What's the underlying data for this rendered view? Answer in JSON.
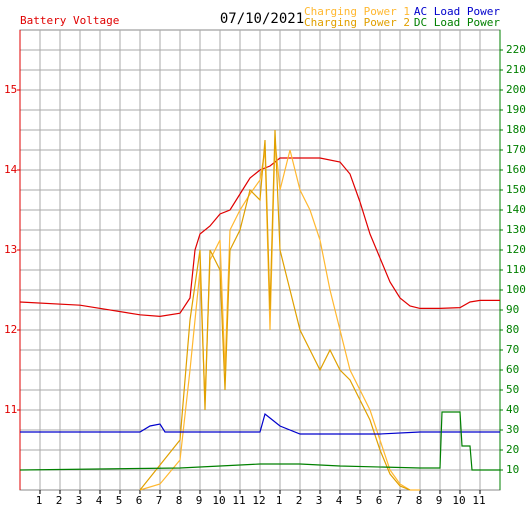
{
  "chart_data": {
    "type": "line",
    "title": "07/10/2021",
    "xlim": [
      0,
      24
    ],
    "xticks": [
      1,
      2,
      3,
      4,
      5,
      6,
      7,
      8,
      9,
      10,
      11,
      12,
      {
        "value": 13,
        "label": "1"
      },
      {
        "value": 14,
        "label": "2"
      },
      {
        "value": 15,
        "label": "3"
      },
      {
        "value": 16,
        "label": "4"
      },
      {
        "value": 17,
        "label": "5"
      },
      {
        "value": 18,
        "label": "6"
      },
      {
        "value": 19,
        "label": "7"
      },
      {
        "value": 20,
        "label": "8"
      },
      {
        "value": 21,
        "label": "9"
      },
      {
        "value": 22,
        "label": "10"
      },
      {
        "value": 23,
        "label": "11"
      }
    ],
    "ylim": [
      10,
      15.75
    ],
    "yticks": [
      11,
      12,
      13,
      14,
      15
    ],
    "y2lim": [
      0,
      230
    ],
    "y2ticks": [
      10,
      20,
      30,
      40,
      50,
      60,
      70,
      80,
      90,
      100,
      110,
      120,
      130,
      140,
      150,
      160,
      170,
      180,
      190,
      200,
      210,
      220
    ],
    "grid": true,
    "series": [
      {
        "name": "Battery Voltage",
        "color": "#e00000",
        "axis": "y",
        "x": [
          0,
          3,
          6,
          7,
          8,
          8.5,
          8.75,
          9,
          9.5,
          10,
          10.5,
          11,
          11.5,
          12,
          12.5,
          12.75,
          13,
          14,
          15,
          16,
          16.5,
          17,
          17.5,
          18,
          18.5,
          19,
          19.5,
          20,
          21,
          22,
          22.5,
          23,
          24
        ],
        "values": [
          12.35,
          12.31,
          12.19,
          12.17,
          12.21,
          12.4,
          13.0,
          13.2,
          13.3,
          13.45,
          13.5,
          13.7,
          13.9,
          14.0,
          14.05,
          14.1,
          14.15,
          14.15,
          14.15,
          14.1,
          13.95,
          13.6,
          13.2,
          12.9,
          12.6,
          12.4,
          12.3,
          12.27,
          12.27,
          12.28,
          12.35,
          12.37,
          12.37
        ]
      },
      {
        "name": "Charging Power 1",
        "color": "#ffb830",
        "axis": "y2",
        "x": [
          6,
          7,
          8,
          8.5,
          9,
          9.25,
          9.5,
          10,
          10.25,
          10.5,
          11,
          11.5,
          12,
          12.25,
          12.5,
          12.75,
          13,
          13.5,
          14,
          14.5,
          15,
          15.5,
          16,
          16.5,
          17,
          17.5,
          18,
          18.5,
          19,
          19.5,
          20
        ],
        "values": [
          0,
          3,
          15,
          60,
          110,
          45,
          115,
          125,
          60,
          130,
          140,
          148,
          155,
          170,
          80,
          175,
          150,
          170,
          150,
          140,
          125,
          100,
          80,
          60,
          50,
          40,
          25,
          10,
          3,
          0,
          0
        ]
      },
      {
        "name": "Charging Power 2",
        "color": "#e0a000",
        "axis": "y2",
        "x": [
          6,
          8,
          8.5,
          9,
          9.25,
          9.5,
          10,
          10.25,
          10.5,
          11,
          11.5,
          12,
          12.25,
          12.5,
          12.75,
          13,
          13.5,
          14,
          14.5,
          15,
          15.5,
          16,
          16.5,
          17,
          17.5,
          18,
          18.5,
          19,
          19.5
        ],
        "values": [
          0,
          25,
          85,
          120,
          40,
          120,
          110,
          50,
          120,
          130,
          150,
          145,
          175,
          90,
          180,
          120,
          100,
          80,
          70,
          60,
          70,
          60,
          55,
          45,
          35,
          20,
          8,
          2,
          0
        ]
      },
      {
        "name": "AC Load Power",
        "color": "#0000cc",
        "axis": "y2",
        "x": [
          0,
          6,
          6.5,
          7,
          7.25,
          12,
          12.25,
          12.5,
          13,
          14,
          18,
          20,
          24
        ],
        "values": [
          29,
          29,
          32,
          33,
          29,
          29,
          38,
          36,
          32,
          28,
          28,
          29,
          29
        ]
      },
      {
        "name": "DC Load Power",
        "color": "#008000",
        "axis": "y2",
        "x": [
          0,
          8,
          10,
          12,
          14,
          16,
          20,
          21,
          21.1,
          22,
          22.1,
          22.5,
          22.6,
          24
        ],
        "values": [
          10,
          11,
          12,
          13,
          13,
          12,
          11,
          11,
          39,
          39,
          22,
          22,
          10,
          10
        ]
      }
    ]
  }
}
